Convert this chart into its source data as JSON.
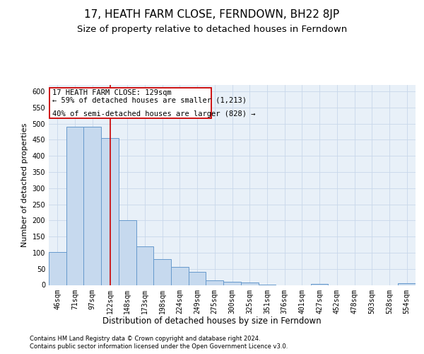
{
  "title": "17, HEATH FARM CLOSE, FERNDOWN, BH22 8JP",
  "subtitle": "Size of property relative to detached houses in Ferndown",
  "xlabel": "Distribution of detached houses by size in Ferndown",
  "ylabel": "Number of detached properties",
  "footer1": "Contains HM Land Registry data © Crown copyright and database right 2024.",
  "footer2": "Contains public sector information licensed under the Open Government Licence v3.0.",
  "bin_labels": [
    "46sqm",
    "71sqm",
    "97sqm",
    "122sqm",
    "148sqm",
    "173sqm",
    "198sqm",
    "224sqm",
    "249sqm",
    "275sqm",
    "300sqm",
    "325sqm",
    "351sqm",
    "376sqm",
    "401sqm",
    "427sqm",
    "452sqm",
    "478sqm",
    "503sqm",
    "528sqm",
    "554sqm"
  ],
  "bar_values": [
    102,
    490,
    490,
    455,
    200,
    120,
    80,
    57,
    40,
    15,
    10,
    8,
    2,
    0,
    0,
    3,
    0,
    0,
    0,
    0,
    6
  ],
  "bar_color": "#c6d9ee",
  "bar_edge_color": "#6699cc",
  "annotation_line1": "17 HEATH FARM CLOSE: 129sqm",
  "annotation_line2": "← 59% of detached houses are smaller (1,213)",
  "annotation_line3": "40% of semi-detached houses are larger (828) →",
  "annotation_box_edge": "#cc0000",
  "vline_color": "#cc0000",
  "vline_pos": 3.0,
  "ylim": [
    0,
    620
  ],
  "yticks": [
    0,
    50,
    100,
    150,
    200,
    250,
    300,
    350,
    400,
    450,
    500,
    550,
    600
  ],
  "grid_color": "#c8d8ea",
  "bg_color": "#e8f0f8",
  "title_fontsize": 11,
  "subtitle_fontsize": 9.5,
  "ylabel_fontsize": 8,
  "xlabel_fontsize": 8.5,
  "tick_fontsize": 7,
  "footer_fontsize": 6
}
